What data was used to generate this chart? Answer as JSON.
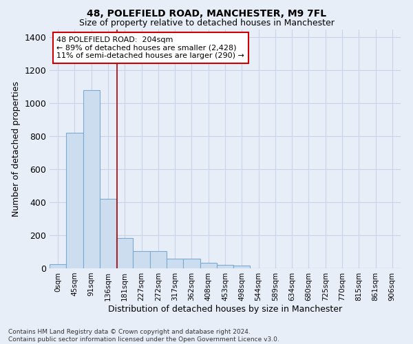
{
  "title_line1": "48, POLEFIELD ROAD, MANCHESTER, M9 7FL",
  "title_line2": "Size of property relative to detached houses in Manchester",
  "xlabel": "Distribution of detached houses by size in Manchester",
  "ylabel": "Number of detached properties",
  "footnote": "Contains HM Land Registry data © Crown copyright and database right 2024.\nContains public sector information licensed under the Open Government Licence v3.0.",
  "bar_labels": [
    "0sqm",
    "45sqm",
    "91sqm",
    "136sqm",
    "181sqm",
    "227sqm",
    "272sqm",
    "317sqm",
    "362sqm",
    "408sqm",
    "453sqm",
    "498sqm",
    "544sqm",
    "589sqm",
    "634sqm",
    "680sqm",
    "725sqm",
    "770sqm",
    "815sqm",
    "861sqm",
    "906sqm"
  ],
  "bar_values": [
    25,
    820,
    1080,
    420,
    185,
    105,
    105,
    60,
    60,
    35,
    20,
    15,
    0,
    0,
    0,
    0,
    0,
    0,
    0,
    0,
    0
  ],
  "bar_color": "#ccddf0",
  "bar_edge_color": "#7aaad0",
  "grid_color": "#c8d4e8",
  "background_color": "#e8eef8",
  "vline_color": "#aa0000",
  "vline_x": 3.55,
  "annotation_text": "48 POLEFIELD ROAD:  204sqm\n← 89% of detached houses are smaller (2,428)\n11% of semi-detached houses are larger (290) →",
  "annotation_box_color": "#ffffff",
  "annotation_box_edge": "#cc0000",
  "ylim": [
    0,
    1450
  ],
  "yticks": [
    0,
    200,
    400,
    600,
    800,
    1000,
    1200,
    1400
  ]
}
